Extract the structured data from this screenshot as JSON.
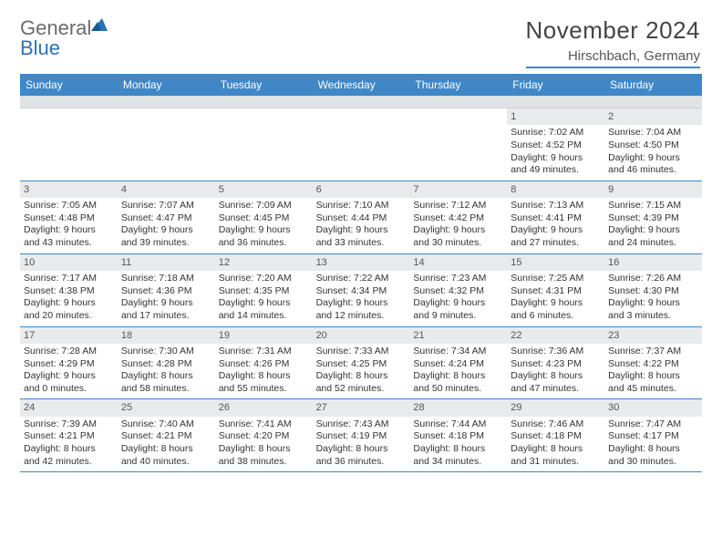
{
  "brand": {
    "part1": "General",
    "part2": "Blue"
  },
  "title": "November 2024",
  "location": "Hirschbach, Germany",
  "colors": {
    "header_bg": "#3f87c6",
    "header_text": "#ffffff",
    "daynum_bg": "#e8eaec",
    "rule": "#3f87c6",
    "logo_grey": "#6b6b6b",
    "logo_blue": "#2b73b6"
  },
  "day_labels": [
    "Sunday",
    "Monday",
    "Tuesday",
    "Wednesday",
    "Thursday",
    "Friday",
    "Saturday"
  ],
  "weeks": [
    [
      null,
      null,
      null,
      null,
      null,
      {
        "n": "1",
        "sr": "Sunrise: 7:02 AM",
        "ss": "Sunset: 4:52 PM",
        "dl": "Daylight: 9 hours and 49 minutes."
      },
      {
        "n": "2",
        "sr": "Sunrise: 7:04 AM",
        "ss": "Sunset: 4:50 PM",
        "dl": "Daylight: 9 hours and 46 minutes."
      }
    ],
    [
      {
        "n": "3",
        "sr": "Sunrise: 7:05 AM",
        "ss": "Sunset: 4:48 PM",
        "dl": "Daylight: 9 hours and 43 minutes."
      },
      {
        "n": "4",
        "sr": "Sunrise: 7:07 AM",
        "ss": "Sunset: 4:47 PM",
        "dl": "Daylight: 9 hours and 39 minutes."
      },
      {
        "n": "5",
        "sr": "Sunrise: 7:09 AM",
        "ss": "Sunset: 4:45 PM",
        "dl": "Daylight: 9 hours and 36 minutes."
      },
      {
        "n": "6",
        "sr": "Sunrise: 7:10 AM",
        "ss": "Sunset: 4:44 PM",
        "dl": "Daylight: 9 hours and 33 minutes."
      },
      {
        "n": "7",
        "sr": "Sunrise: 7:12 AM",
        "ss": "Sunset: 4:42 PM",
        "dl": "Daylight: 9 hours and 30 minutes."
      },
      {
        "n": "8",
        "sr": "Sunrise: 7:13 AM",
        "ss": "Sunset: 4:41 PM",
        "dl": "Daylight: 9 hours and 27 minutes."
      },
      {
        "n": "9",
        "sr": "Sunrise: 7:15 AM",
        "ss": "Sunset: 4:39 PM",
        "dl": "Daylight: 9 hours and 24 minutes."
      }
    ],
    [
      {
        "n": "10",
        "sr": "Sunrise: 7:17 AM",
        "ss": "Sunset: 4:38 PM",
        "dl": "Daylight: 9 hours and 20 minutes."
      },
      {
        "n": "11",
        "sr": "Sunrise: 7:18 AM",
        "ss": "Sunset: 4:36 PM",
        "dl": "Daylight: 9 hours and 17 minutes."
      },
      {
        "n": "12",
        "sr": "Sunrise: 7:20 AM",
        "ss": "Sunset: 4:35 PM",
        "dl": "Daylight: 9 hours and 14 minutes."
      },
      {
        "n": "13",
        "sr": "Sunrise: 7:22 AM",
        "ss": "Sunset: 4:34 PM",
        "dl": "Daylight: 9 hours and 12 minutes."
      },
      {
        "n": "14",
        "sr": "Sunrise: 7:23 AM",
        "ss": "Sunset: 4:32 PM",
        "dl": "Daylight: 9 hours and 9 minutes."
      },
      {
        "n": "15",
        "sr": "Sunrise: 7:25 AM",
        "ss": "Sunset: 4:31 PM",
        "dl": "Daylight: 9 hours and 6 minutes."
      },
      {
        "n": "16",
        "sr": "Sunrise: 7:26 AM",
        "ss": "Sunset: 4:30 PM",
        "dl": "Daylight: 9 hours and 3 minutes."
      }
    ],
    [
      {
        "n": "17",
        "sr": "Sunrise: 7:28 AM",
        "ss": "Sunset: 4:29 PM",
        "dl": "Daylight: 9 hours and 0 minutes."
      },
      {
        "n": "18",
        "sr": "Sunrise: 7:30 AM",
        "ss": "Sunset: 4:28 PM",
        "dl": "Daylight: 8 hours and 58 minutes."
      },
      {
        "n": "19",
        "sr": "Sunrise: 7:31 AM",
        "ss": "Sunset: 4:26 PM",
        "dl": "Daylight: 8 hours and 55 minutes."
      },
      {
        "n": "20",
        "sr": "Sunrise: 7:33 AM",
        "ss": "Sunset: 4:25 PM",
        "dl": "Daylight: 8 hours and 52 minutes."
      },
      {
        "n": "21",
        "sr": "Sunrise: 7:34 AM",
        "ss": "Sunset: 4:24 PM",
        "dl": "Daylight: 8 hours and 50 minutes."
      },
      {
        "n": "22",
        "sr": "Sunrise: 7:36 AM",
        "ss": "Sunset: 4:23 PM",
        "dl": "Daylight: 8 hours and 47 minutes."
      },
      {
        "n": "23",
        "sr": "Sunrise: 7:37 AM",
        "ss": "Sunset: 4:22 PM",
        "dl": "Daylight: 8 hours and 45 minutes."
      }
    ],
    [
      {
        "n": "24",
        "sr": "Sunrise: 7:39 AM",
        "ss": "Sunset: 4:21 PM",
        "dl": "Daylight: 8 hours and 42 minutes."
      },
      {
        "n": "25",
        "sr": "Sunrise: 7:40 AM",
        "ss": "Sunset: 4:21 PM",
        "dl": "Daylight: 8 hours and 40 minutes."
      },
      {
        "n": "26",
        "sr": "Sunrise: 7:41 AM",
        "ss": "Sunset: 4:20 PM",
        "dl": "Daylight: 8 hours and 38 minutes."
      },
      {
        "n": "27",
        "sr": "Sunrise: 7:43 AM",
        "ss": "Sunset: 4:19 PM",
        "dl": "Daylight: 8 hours and 36 minutes."
      },
      {
        "n": "28",
        "sr": "Sunrise: 7:44 AM",
        "ss": "Sunset: 4:18 PM",
        "dl": "Daylight: 8 hours and 34 minutes."
      },
      {
        "n": "29",
        "sr": "Sunrise: 7:46 AM",
        "ss": "Sunset: 4:18 PM",
        "dl": "Daylight: 8 hours and 31 minutes."
      },
      {
        "n": "30",
        "sr": "Sunrise: 7:47 AM",
        "ss": "Sunset: 4:17 PM",
        "dl": "Daylight: 8 hours and 30 minutes."
      }
    ]
  ]
}
